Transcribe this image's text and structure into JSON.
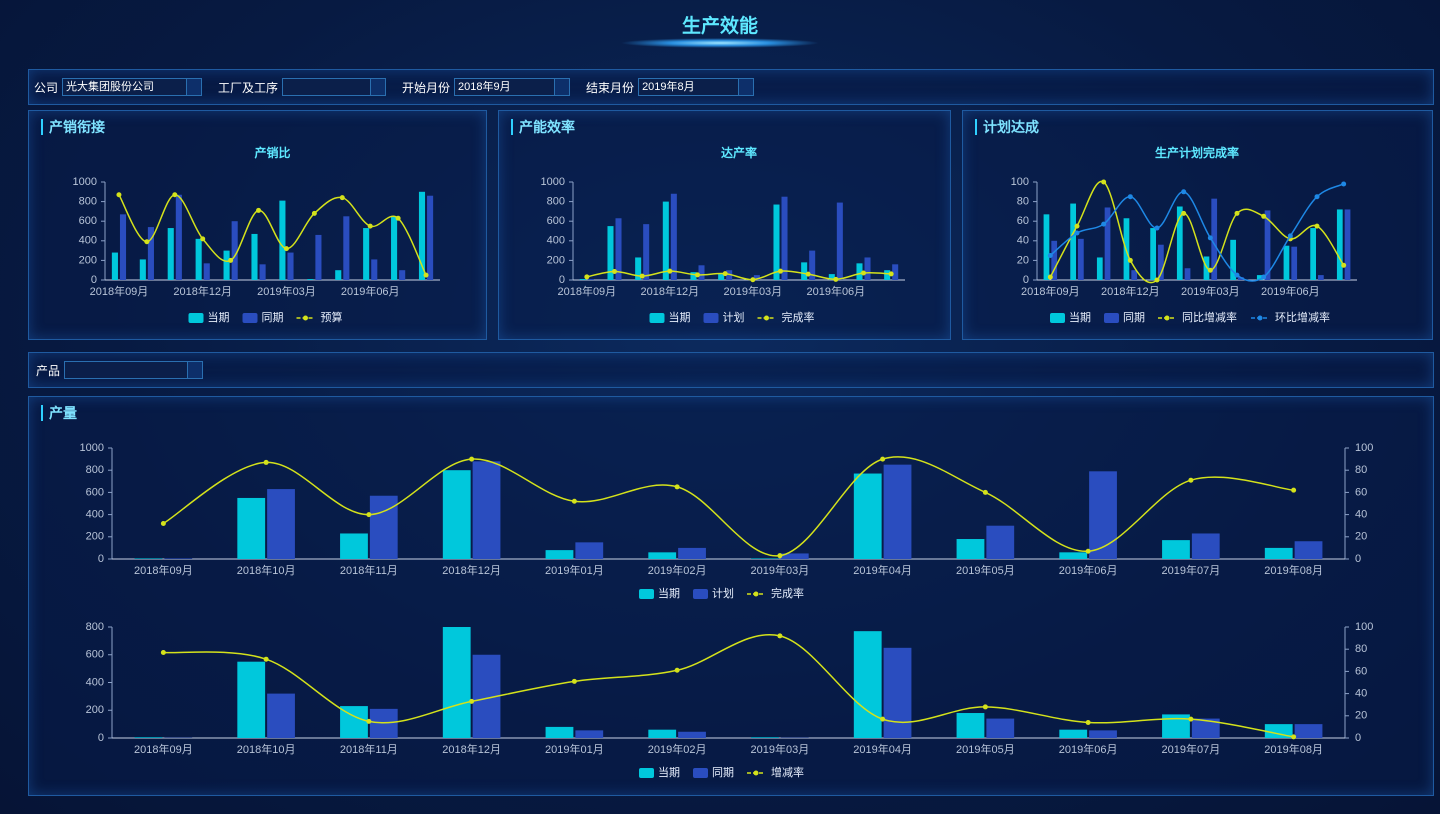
{
  "header": {
    "title": "生产效能"
  },
  "filters": [
    {
      "label": "公司",
      "value": "光大集团股份公司"
    },
    {
      "label": "工厂及工序"
    },
    {
      "label": "开始月份",
      "value": "2018年9月"
    },
    {
      "label": "结束月份",
      "value": "2019年8月"
    }
  ],
  "product_filter": {
    "label": "产品"
  },
  "panels": [
    "产销衔接",
    "产能效率",
    "计划达成",
    "产量"
  ],
  "chart_data": [
    {
      "type": "bar",
      "title": "产销比",
      "categories": [
        "2018年09月",
        null,
        null,
        "2018年12月",
        null,
        null,
        "2019年03月",
        null,
        null,
        "2019年06月",
        null,
        null
      ],
      "series": [
        {
          "name": "当期",
          "color": "#00c8dc",
          "values": [
            280,
            210,
            530,
            420,
            300,
            470,
            810,
            10,
            100,
            530,
            650,
            900
          ]
        },
        {
          "name": "同期",
          "color": "#2a4dbf",
          "values": [
            670,
            540,
            870,
            170,
            600,
            160,
            280,
            460,
            650,
            210,
            100,
            860
          ]
        },
        {
          "name": "预算",
          "type": "line",
          "color": "#d4e21b",
          "values": [
            870,
            390,
            870,
            420,
            200,
            710,
            320,
            680,
            840,
            550,
            630,
            50
          ]
        }
      ],
      "ylim": [
        0,
        1000
      ],
      "yticks": [
        0,
        200,
        400,
        600,
        800,
        1000
      ],
      "legend": "bottom"
    },
    {
      "type": "bar",
      "title": "达产率",
      "categories": [
        "2018年09月",
        null,
        null,
        "2018年12月",
        null,
        null,
        "2019年03月",
        null,
        null,
        "2019年06月",
        null,
        null
      ],
      "series": [
        {
          "name": "当期",
          "color": "#00c8dc",
          "values": [
            10,
            550,
            230,
            800,
            80,
            60,
            10,
            770,
            180,
            60,
            170,
            100
          ]
        },
        {
          "name": "计划",
          "color": "#2a4dbf",
          "values": [
            10,
            630,
            570,
            880,
            150,
            100,
            50,
            850,
            300,
            790,
            230,
            160
          ]
        },
        {
          "name": "完成率",
          "type": "line",
          "color": "#d4e21b",
          "values": [
            32,
            87,
            40,
            90,
            52,
            65,
            3,
            90,
            60,
            7,
            71,
            62
          ]
        }
      ],
      "ylim": [
        0,
        1000
      ],
      "yticks": [
        0,
        200,
        400,
        600,
        800,
        1000
      ],
      "legend": "bottom"
    },
    {
      "type": "bar",
      "title": "生产计划完成率",
      "categories": [
        "2018年09月",
        null,
        null,
        "2018年12月",
        null,
        null,
        "2019年03月",
        null,
        null,
        "2019年06月",
        null,
        null
      ],
      "series": [
        {
          "name": "当期",
          "color": "#00c8dc",
          "values": [
            67,
            78,
            23,
            63,
            53,
            75,
            24,
            41,
            5,
            35,
            53,
            72
          ]
        },
        {
          "name": "同期",
          "color": "#2a4dbf",
          "values": [
            40,
            42,
            74,
            10,
            36,
            12,
            83,
            3,
            71,
            34,
            5,
            72
          ]
        },
        {
          "name": "同比增减率",
          "type": "line",
          "color": "#d4e21b",
          "values": [
            3,
            55,
            100,
            20,
            0,
            68,
            10,
            68,
            65,
            42,
            55,
            15
          ]
        },
        {
          "name": "环比增减率",
          "type": "line",
          "color": "#1e88e5",
          "values": [
            25,
            48,
            57,
            85,
            53,
            90,
            43,
            5,
            3,
            45,
            85,
            98
          ]
        }
      ],
      "ylim": [
        0,
        100
      ],
      "yticks": [
        0,
        20,
        40,
        60,
        80,
        100
      ],
      "legend": "bottom"
    },
    {
      "type": "bar",
      "categories": [
        "2018年09月",
        "2018年10月",
        "2018年11月",
        "2018年12月",
        "2019年01月",
        "2019年02月",
        "2019年03月",
        "2019年04月",
        "2019年05月",
        "2019年06月",
        "2019年07月",
        "2019年08月"
      ],
      "series": [
        {
          "name": "当期",
          "color": "#00c8dc",
          "values": [
            5,
            550,
            230,
            800,
            80,
            60,
            5,
            770,
            180,
            60,
            170,
            100
          ]
        },
        {
          "name": "计划",
          "color": "#2a4dbf",
          "values": [
            5,
            630,
            570,
            880,
            150,
            100,
            50,
            850,
            300,
            790,
            230,
            160
          ]
        },
        {
          "name": "完成率",
          "type": "line",
          "axis": "y2",
          "color": "#d4e21b",
          "values": [
            32,
            87,
            40,
            90,
            52,
            65,
            3,
            90,
            60,
            7,
            71,
            62
          ]
        }
      ],
      "ylim": [
        0,
        1000
      ],
      "yticks": [
        0,
        200,
        400,
        600,
        800,
        1000
      ],
      "y2lim": [
        0,
        100
      ],
      "y2ticks": [
        0,
        20,
        40,
        60,
        80,
        100
      ],
      "legend": "bottom"
    },
    {
      "type": "bar",
      "categories": [
        "2018年09月",
        "2018年10月",
        "2018年11月",
        "2018年12月",
        "2019年01月",
        "2019年02月",
        "2019年03月",
        "2019年04月",
        "2019年05月",
        "2019年06月",
        "2019年07月",
        "2019年08月"
      ],
      "series": [
        {
          "name": "当期",
          "color": "#00c8dc",
          "values": [
            5,
            550,
            230,
            800,
            80,
            60,
            5,
            770,
            180,
            60,
            170,
            100
          ]
        },
        {
          "name": "同期",
          "color": "#2a4dbf",
          "values": [
            2,
            320,
            210,
            600,
            55,
            45,
            2,
            650,
            140,
            55,
            140,
            100
          ]
        },
        {
          "name": "增减率",
          "type": "line",
          "axis": "y2",
          "color": "#d4e21b",
          "values": [
            77,
            71,
            15,
            33,
            51,
            61,
            92,
            17,
            28,
            14,
            17,
            1
          ]
        }
      ],
      "ylim": [
        0,
        800
      ],
      "yticks": [
        0,
        200,
        400,
        600,
        800
      ],
      "y2lim": [
        0,
        100
      ],
      "y2ticks": [
        0,
        20,
        40,
        60,
        80,
        100
      ],
      "legend": "bottom"
    }
  ]
}
